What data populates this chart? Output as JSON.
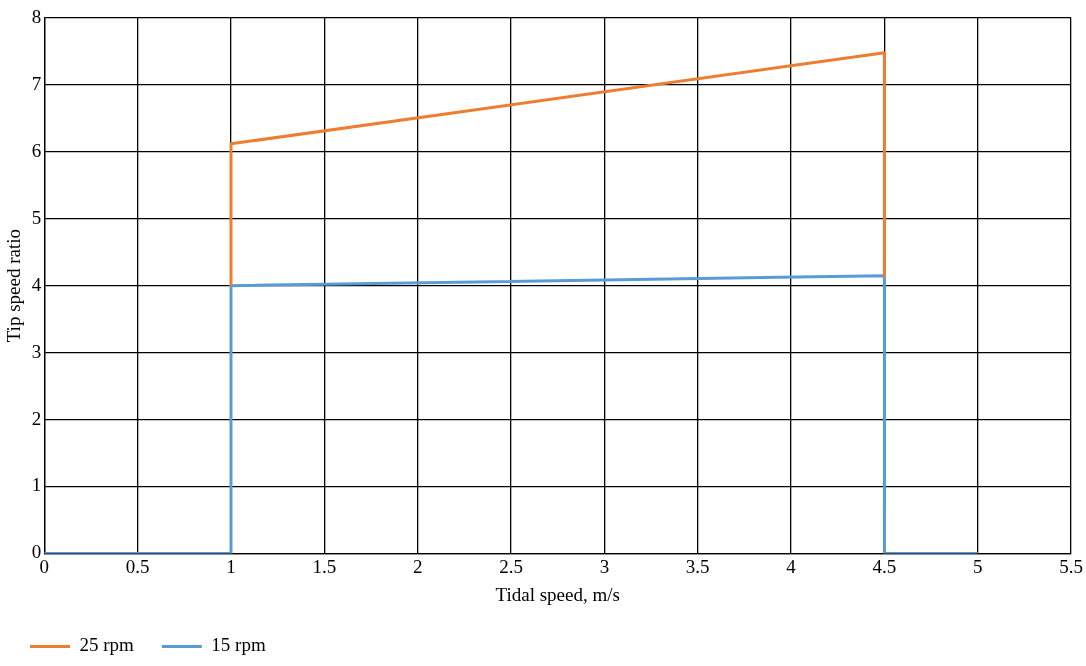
{
  "chart_data": {
    "type": "line",
    "xlabel": "Tidal speed, m/s",
    "ylabel": "Tip speed ratio",
    "series": [
      {
        "name": "25 rpm",
        "color": "#ed7d31",
        "x": [
          1,
          1,
          4.5,
          4.5
        ],
        "values": [
          4.0,
          6.12,
          7.48,
          4.15
        ]
      },
      {
        "name": "15 rpm",
        "color": "#5b9bd5",
        "x": [
          0,
          1,
          1,
          4.5,
          4.5,
          5
        ],
        "values": [
          0,
          0,
          4.0,
          4.15,
          0,
          0
        ]
      }
    ],
    "xlim": [
      0,
      5.5
    ],
    "xticks": [
      0,
      0.5,
      1,
      1.5,
      2,
      2.5,
      3,
      3.5,
      4,
      4.5,
      5,
      5.5
    ],
    "ylim": [
      0,
      8
    ],
    "yticks": [
      0,
      1,
      2,
      3,
      4,
      5,
      6,
      7,
      8
    ],
    "grid": true,
    "legend": "bottom left",
    "marker": "none"
  }
}
